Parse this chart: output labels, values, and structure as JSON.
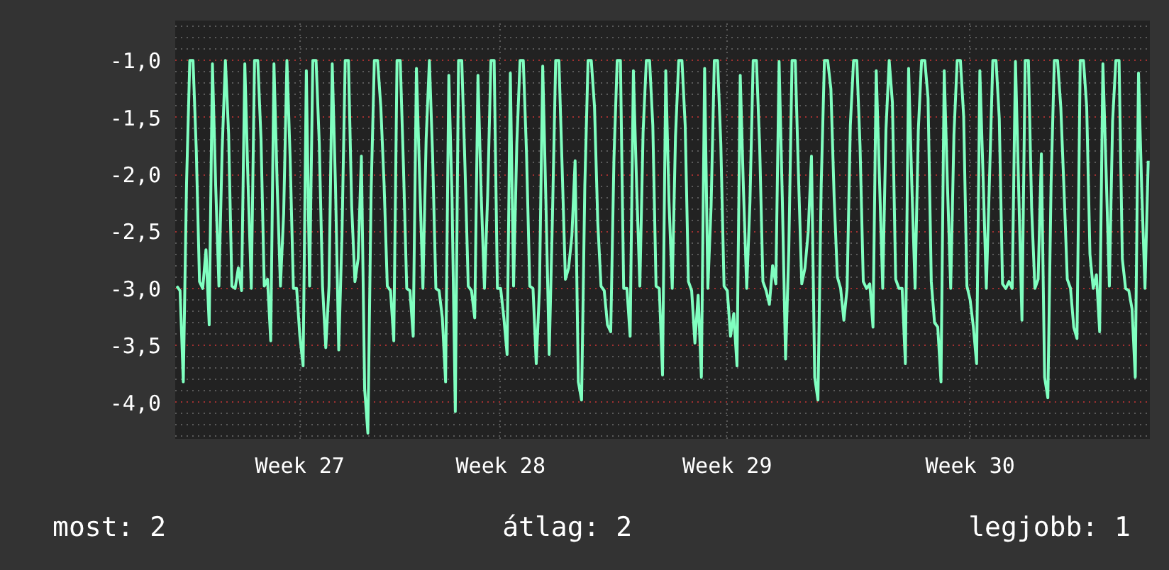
{
  "chart_data": {
    "type": "line",
    "color": "#80ffc0",
    "categories": [
      null,
      null,
      null,
      null,
      null,
      null,
      null,
      null,
      null,
      null,
      null,
      null,
      null,
      null,
      null,
      null,
      null,
      null,
      null,
      null,
      null,
      null,
      null,
      null,
      null,
      null,
      null,
      null,
      null,
      null,
      null,
      null,
      null,
      null,
      null,
      null,
      null,
      null,
      "Week 27",
      null,
      null,
      null,
      null,
      null,
      null,
      null,
      null,
      null,
      null,
      null,
      null,
      null,
      null,
      null,
      null,
      null,
      null,
      null,
      null,
      null,
      null,
      null,
      null,
      null,
      null,
      null,
      null,
      null,
      null,
      null,
      null,
      null,
      null,
      null,
      null,
      null,
      null,
      null,
      null,
      null,
      null,
      null,
      null,
      null,
      null,
      null,
      null,
      null,
      null,
      null,
      null,
      null,
      null,
      null,
      null,
      null,
      null,
      null,
      null,
      null,
      "Week 28",
      null,
      null,
      null,
      null,
      null,
      null,
      null,
      null,
      null,
      null,
      null,
      null,
      null,
      null,
      null,
      null,
      null,
      null,
      null,
      null,
      null,
      null,
      null,
      null,
      null,
      null,
      null,
      null,
      null,
      null,
      null,
      null,
      null,
      null,
      null,
      null,
      null,
      null,
      null,
      null,
      null,
      null,
      null,
      null,
      null,
      null,
      null,
      null,
      null,
      null,
      null,
      null,
      null,
      null,
      null,
      null,
      null,
      null,
      null,
      null,
      null,
      null,
      null,
      null,
      null,
      null,
      null,
      null,
      null,
      "Week 29",
      null,
      null,
      null,
      null,
      null,
      null,
      null,
      null,
      null,
      null,
      null,
      null,
      null,
      null,
      null,
      null,
      null,
      null,
      null,
      null,
      null,
      null,
      null,
      null,
      null,
      null,
      null,
      null,
      null,
      null,
      null,
      null,
      null,
      null,
      null,
      null,
      null,
      null,
      null,
      null,
      null,
      null,
      null,
      null,
      null,
      null,
      null,
      null,
      null,
      null,
      null,
      null,
      null,
      null,
      null,
      null,
      null,
      null,
      null,
      null,
      null,
      null,
      null,
      null,
      null,
      null,
      null,
      null,
      null,
      null,
      null,
      null,
      null,
      null,
      "Week 30",
      null,
      null,
      null,
      null,
      null,
      null,
      null,
      null,
      null,
      null,
      null,
      null,
      null,
      null,
      null,
      null,
      null,
      null,
      null,
      null,
      null,
      null,
      null,
      null,
      null,
      null,
      null,
      null,
      null,
      null,
      null,
      null,
      null,
      null,
      null,
      null,
      null,
      null,
      null,
      null,
      null,
      null,
      null,
      null,
      null,
      null,
      null,
      null,
      null,
      null,
      null,
      null,
      null,
      null,
      null
    ],
    "values": [
      -2.98,
      -3.02,
      -3.82,
      -2.08,
      -1.0,
      -1.0,
      -1.78,
      -2.94,
      -3.0,
      -2.66,
      -3.32,
      -1.03,
      -2.1,
      -2.98,
      -1.78,
      -1.0,
      -1.65,
      -2.98,
      -3.0,
      -2.82,
      -3.02,
      -1.03,
      -2.08,
      -3.0,
      -1.0,
      -1.0,
      -1.69,
      -2.98,
      -2.92,
      -3.46,
      -1.03,
      -2.1,
      -2.98,
      -2.34,
      -1.0,
      -1.86,
      -3.0,
      -3.0,
      -3.42,
      -3.68,
      -1.09,
      -2.98,
      -1.0,
      -1.0,
      -1.73,
      -2.98,
      -3.52,
      -2.98,
      -1.03,
      -2.1,
      -3.54,
      -2.54,
      -1.0,
      -1.0,
      -2.28,
      -2.94,
      -2.74,
      -1.84,
      -3.88,
      -4.27,
      -2.16,
      -1.0,
      -1.0,
      -1.41,
      -2.08,
      -2.98,
      -3.02,
      -3.46,
      -1.0,
      -1.0,
      -1.94,
      -3.0,
      -3.02,
      -3.42,
      -1.07,
      -2.04,
      -3.0,
      -1.69,
      -1.0,
      -1.84,
      -3.0,
      -3.02,
      -3.26,
      -3.82,
      -1.13,
      -2.22,
      -4.08,
      -1.0,
      -1.0,
      -1.94,
      -2.98,
      -3.02,
      -3.26,
      -1.13,
      -2.18,
      -3.0,
      -2.18,
      -1.0,
      -1.0,
      -3.0,
      -3.0,
      -3.26,
      -3.58,
      -1.11,
      -2.98,
      -1.73,
      -1.0,
      -1.0,
      -1.82,
      -2.98,
      -3.0,
      -3.66,
      -3.0,
      -1.05,
      -2.26,
      -3.58,
      -2.38,
      -1.0,
      -1.0,
      -1.94,
      -2.92,
      -2.82,
      -2.54,
      -1.88,
      -3.82,
      -3.98,
      -2.1,
      -1.0,
      -1.0,
      -1.41,
      -2.42,
      -2.98,
      -3.02,
      -3.32,
      -3.38,
      -1.86,
      -1.0,
      -1.0,
      -3.0,
      -3.0,
      -3.42,
      -1.09,
      -2.1,
      -2.98,
      -1.63,
      -1.0,
      -1.0,
      -1.57,
      -2.98,
      -3.0,
      -3.76,
      -1.09,
      -2.24,
      -3.0,
      -1.67,
      -1.0,
      -1.0,
      -1.57,
      -2.94,
      -3.02,
      -3.48,
      -3.06,
      -3.78,
      -1.07,
      -3.0,
      -2.28,
      -1.0,
      -1.0,
      -1.73,
      -2.98,
      -3.02,
      -3.42,
      -3.22,
      -3.68,
      -1.13,
      -2.14,
      -3.0,
      -2.24,
      -1.0,
      -1.0,
      -1.75,
      -2.94,
      -3.02,
      -3.14,
      -2.8,
      -2.96,
      -1.01,
      -2.22,
      -3.62,
      -2.66,
      -1.0,
      -1.0,
      -2.02,
      -2.96,
      -2.82,
      -2.5,
      -1.84,
      -3.78,
      -3.98,
      -2.1,
      -1.0,
      -1.0,
      -1.25,
      -2.2,
      -2.9,
      -3.0,
      -3.28,
      -3.0,
      -1.57,
      -1.0,
      -1.0,
      -1.75,
      -2.94,
      -3.0,
      -2.96,
      -3.34,
      -1.09,
      -2.04,
      -3.0,
      -1.61,
      -1.0,
      -1.37,
      -2.92,
      -3.0,
      -3.0,
      -3.66,
      -1.07,
      -2.1,
      -3.0,
      -1.61,
      -1.0,
      -1.0,
      -1.33,
      -2.94,
      -3.3,
      -3.34,
      -3.82,
      -1.09,
      -2.1,
      -3.0,
      -1.65,
      -1.0,
      -1.0,
      -1.49,
      -2.98,
      -3.1,
      -3.34,
      -3.66,
      -1.09,
      -2.02,
      -3.0,
      -2.02,
      -1.0,
      -1.0,
      -1.51,
      -2.96,
      -3.0,
      -2.94,
      -3.0,
      -1.01,
      -2.14,
      -3.28,
      -1.0,
      -1.0,
      -2.3,
      -3.0,
      -2.92,
      -1.82,
      -3.78,
      -3.96,
      -2.08,
      -1.0,
      -1.0,
      -1.41,
      -2.14,
      -2.92,
      -3.0,
      -3.34,
      -3.44,
      -1.0,
      -1.0,
      -1.41,
      -2.7,
      -3.0,
      -2.88,
      -3.38,
      -1.03,
      -1.98,
      -2.98,
      -1.53,
      -1.0,
      -1.0,
      -2.74,
      -3.0,
      -3.02,
      -3.18,
      -3.78,
      -1.11,
      -2.14,
      -3.0,
      -1.88
    ],
    "ylim": [
      -4.32,
      -0.65
    ],
    "yticks": [
      {
        "value": -4.0,
        "label": "-4,0"
      },
      {
        "value": -3.5,
        "label": "-3,5"
      },
      {
        "value": -3.0,
        "label": "-3,0"
      },
      {
        "value": -2.5,
        "label": "-2,5"
      },
      {
        "value": -2.0,
        "label": "-2,0"
      },
      {
        "value": -1.5,
        "label": "-1,5"
      },
      {
        "value": -1.0,
        "label": "-1,0"
      },
      {
        "value": -4.3,
        "label": null
      },
      {
        "value": -4.2,
        "label": null
      },
      {
        "value": -4.1,
        "label": null
      },
      {
        "value": -3.9,
        "label": null
      },
      {
        "value": -3.8,
        "label": null
      },
      {
        "value": -3.7,
        "label": null
      },
      {
        "value": -3.6,
        "label": null
      },
      {
        "value": -3.4,
        "label": null
      },
      {
        "value": -3.3,
        "label": null
      },
      {
        "value": -3.2,
        "label": null
      },
      {
        "value": -3.1,
        "label": null
      },
      {
        "value": -2.9,
        "label": null
      },
      {
        "value": -2.8,
        "label": null
      },
      {
        "value": -2.7,
        "label": null
      },
      {
        "value": -2.6,
        "label": null
      },
      {
        "value": -2.4,
        "label": null
      },
      {
        "value": -2.3,
        "label": null
      },
      {
        "value": -2.2,
        "label": null
      },
      {
        "value": -2.1,
        "label": null
      },
      {
        "value": -1.9,
        "label": null
      },
      {
        "value": -1.8,
        "label": null
      },
      {
        "value": -1.7,
        "label": null
      },
      {
        "value": -1.6,
        "label": null
      },
      {
        "value": -1.4,
        "label": null
      },
      {
        "value": -1.3,
        "label": null
      },
      {
        "value": -1.2,
        "label": null
      },
      {
        "value": -1.1,
        "label": null
      },
      {
        "value": -0.9,
        "label": null
      },
      {
        "value": -0.8,
        "label": null
      },
      {
        "value": -0.7,
        "label": null
      }
    ],
    "grid": true,
    "line_style": "solid",
    "annotations": [
      "most: 2",
      "átlag: 2",
      "legjobb: 1"
    ]
  }
}
